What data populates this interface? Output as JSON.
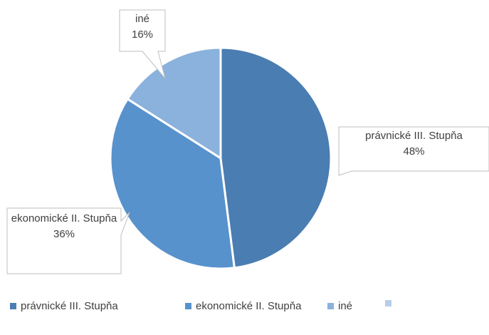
{
  "chart_data": {
    "type": "pie",
    "categories": [
      "právnické III. Stupňa",
      "ekonomické II. Stupňa",
      "iné",
      null
    ],
    "values": [
      48,
      36,
      16,
      null
    ],
    "value_labels": [
      "48%",
      "36%",
      "16%",
      null
    ],
    "colors": [
      "#4a7db1",
      "#5892cc",
      "#8bb1dd",
      "#b8cde8"
    ],
    "legend": "bottom"
  }
}
